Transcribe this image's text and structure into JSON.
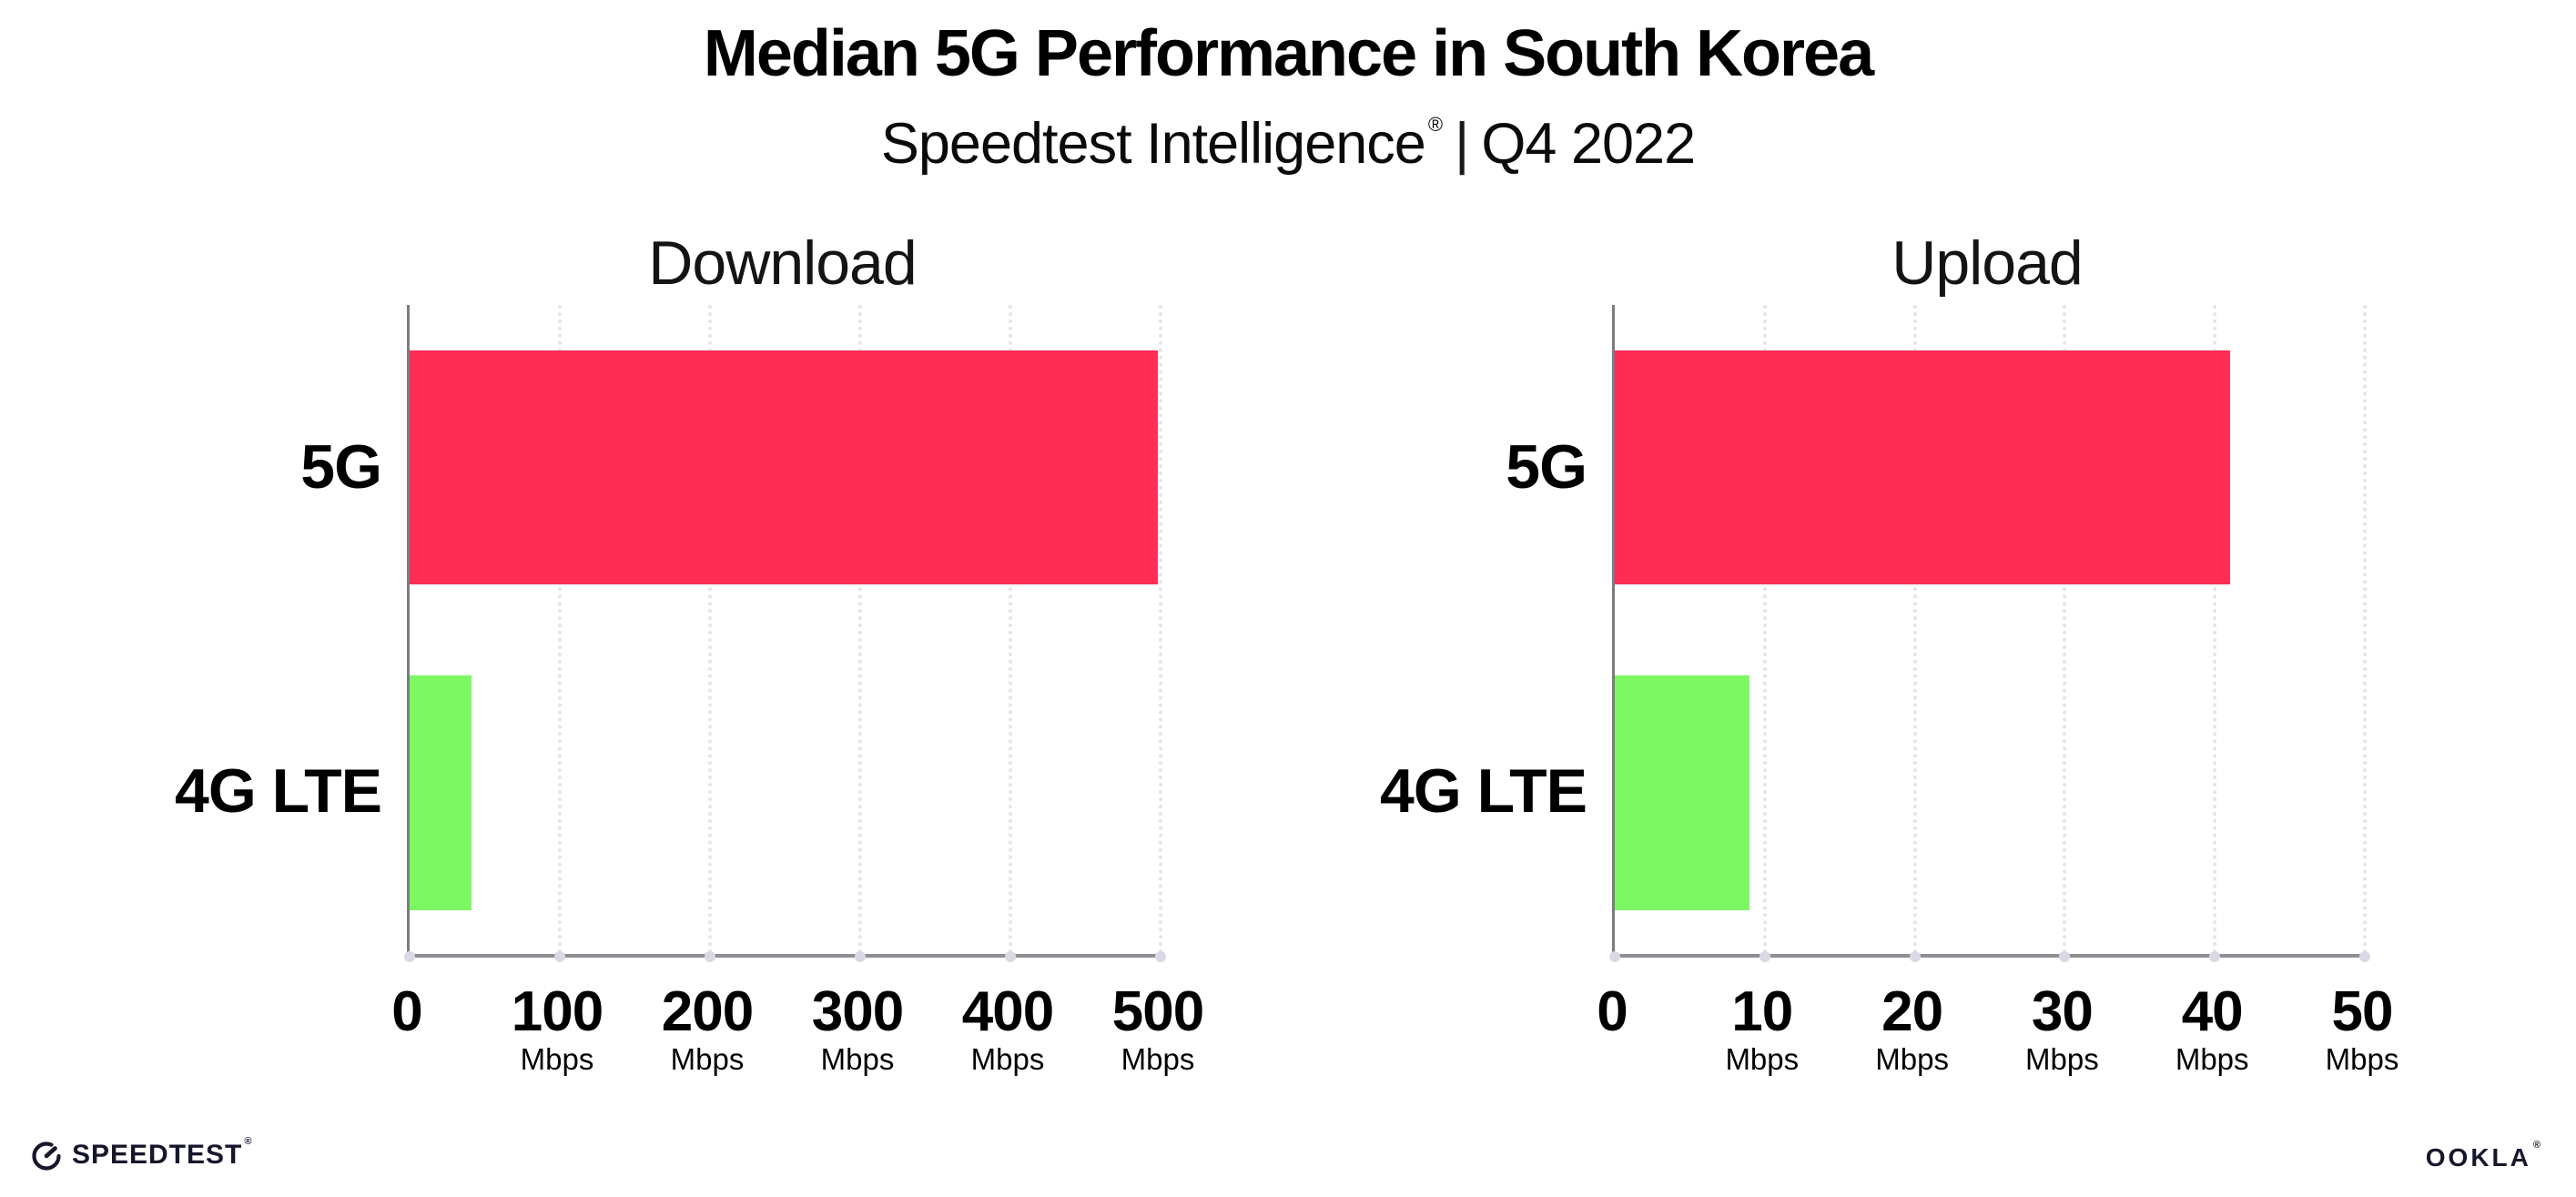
{
  "header": {
    "title": "Median 5G Performance in South Korea",
    "subtitle_brand": "Speedtest Intelligence",
    "subtitle_registered": "®",
    "subtitle_separator": "|",
    "subtitle_period": "Q4 2022"
  },
  "footer": {
    "speedtest_wordmark": "SPEEDTEST",
    "speedtest_registered": "®",
    "ookla_wordmark": "OOKLA",
    "ookla_registered": "®"
  },
  "colors": {
    "bar_5g": "#FD2D56",
    "bar_4g_lte": "#7DF862",
    "gridline": "#E4E4EE",
    "axis_line": "#8E8E94",
    "tick_dot": "#D9D9E3",
    "text": "#000000"
  },
  "chart_data": [
    {
      "type": "bar",
      "orientation": "horizontal",
      "title": "Download",
      "categories": [
        "5G",
        "4G LTE"
      ],
      "values": [
        498,
        41
      ],
      "bar_colors": [
        "#FD2D56",
        "#7DF862"
      ],
      "unit": "Mbps",
      "xlim": [
        0,
        500
      ],
      "xticks": [
        0,
        100,
        200,
        300,
        400,
        500
      ],
      "tick_unit_label": "Mbps",
      "unit_on_zero_tick": false,
      "grid": "vertical-dotted",
      "legend": "none"
    },
    {
      "type": "bar",
      "orientation": "horizontal",
      "title": "Upload",
      "categories": [
        "5G",
        "4G LTE"
      ],
      "values": [
        41,
        9
      ],
      "bar_colors": [
        "#FD2D56",
        "#7DF862"
      ],
      "unit": "Mbps",
      "xlim": [
        0,
        50
      ],
      "xticks": [
        0,
        10,
        20,
        30,
        40,
        50
      ],
      "tick_unit_label": "Mbps",
      "unit_on_zero_tick": false,
      "grid": "vertical-dotted",
      "legend": "none"
    }
  ]
}
